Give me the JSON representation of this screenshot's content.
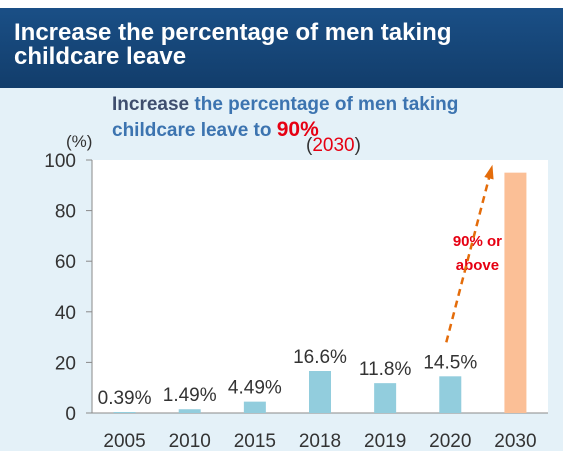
{
  "header": {
    "title": "Increase the percentage of men taking childcare leave"
  },
  "subtitle": {
    "part1": "Increase ",
    "part2": "the percentage of men taking",
    "part3": "childcare leave to ",
    "target": "90%"
  },
  "target_year": {
    "open": "(",
    "year": "2030",
    "close": ")"
  },
  "colors": {
    "actual_bar": "#92cddd",
    "target_bar": "#fbbf96",
    "arrow": "#e46c0a",
    "accent_red": "#e60012"
  },
  "chart_data": {
    "type": "bar",
    "unit": "(%)",
    "ylim": [
      0,
      100
    ],
    "yticks": [
      0,
      20,
      40,
      60,
      80,
      100
    ],
    "grid": false,
    "categories": [
      "2005",
      "2010",
      "2015",
      "2018",
      "2019",
      "2020",
      "2030"
    ],
    "values": [
      0.39,
      1.49,
      4.49,
      16.6,
      11.8,
      14.5,
      95
    ],
    "data_labels": [
      "0.39%",
      "1.49%",
      "4.49%",
      "16.6%",
      "11.8%",
      "14.5%",
      ""
    ],
    "target_index": 6,
    "target_label_lines": [
      "90% or",
      "above"
    ],
    "arrow": {
      "from_category": "2020",
      "to_category": "2030"
    }
  }
}
